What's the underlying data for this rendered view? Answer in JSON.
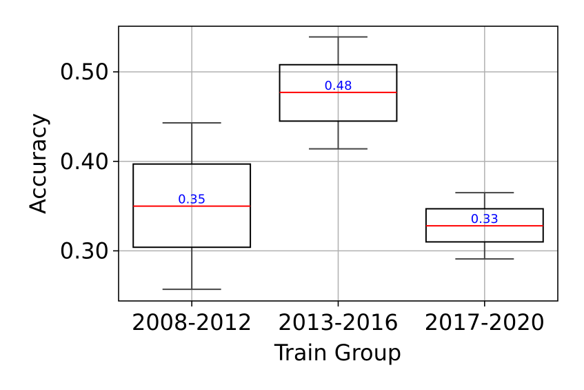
{
  "chart_data": {
    "type": "box",
    "title": "",
    "xlabel": "Train Group",
    "ylabel": "Accuracy",
    "categories": [
      "2008-2012",
      "2013-2016",
      "2017-2020"
    ],
    "boxes": [
      {
        "category": "2008-2012",
        "whisker_low": 0.257,
        "q1": 0.304,
        "median": 0.35,
        "q3": 0.397,
        "whisker_high": 0.443,
        "median_label": "0.35"
      },
      {
        "category": "2013-2016",
        "whisker_low": 0.414,
        "q1": 0.445,
        "median": 0.477,
        "q3": 0.508,
        "whisker_high": 0.539,
        "median_label": "0.48"
      },
      {
        "category": "2017-2020",
        "whisker_low": 0.291,
        "q1": 0.31,
        "median": 0.328,
        "q3": 0.347,
        "whisker_high": 0.365,
        "median_label": "0.33"
      }
    ],
    "ylim": [
      0.244,
      0.551
    ],
    "yticks": [
      0.3,
      0.4,
      0.5
    ],
    "ytick_labels": [
      "0.30",
      "0.40",
      "0.50"
    ],
    "grid": true,
    "colors": {
      "box": "#000000",
      "whisker": "#444444",
      "median_line": "#ff0000",
      "median_text": "#0000ff",
      "grid": "#b0b0b0"
    }
  }
}
